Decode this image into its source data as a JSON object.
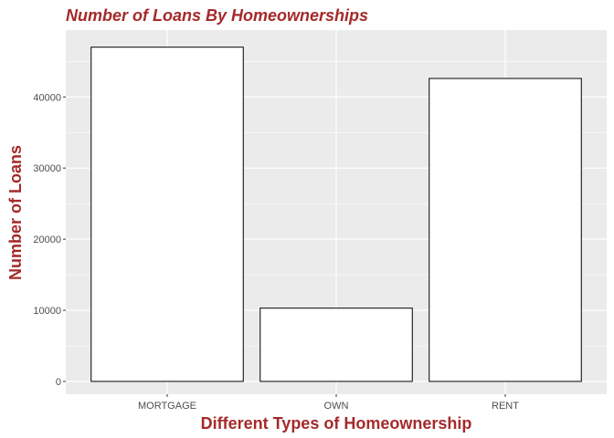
{
  "chart_data": {
    "type": "bar",
    "title": "Number of Loans By Homeownerships",
    "xlabel": "Different Types of Homeownership",
    "ylabel": "Number of Loans",
    "categories": [
      "MORTGAGE",
      "OWN",
      "RENT"
    ],
    "values": [
      47000,
      10300,
      42600
    ],
    "ylim": [
      -1800,
      49400
    ],
    "yticks": [
      0,
      10000,
      20000,
      30000,
      40000
    ],
    "ytick_labels": [
      "0",
      "10000",
      "20000",
      "30000",
      "40000"
    ],
    "grid": true,
    "legend": "none",
    "colors": {
      "title": "#a52a2a",
      "axis_title": "#a52a2a",
      "panel_background": "#ebebeb",
      "grid": "#ffffff",
      "bar_fill": "#ffffff",
      "bar_outline": "#000000",
      "tick_label": "#4d4d4d"
    }
  }
}
